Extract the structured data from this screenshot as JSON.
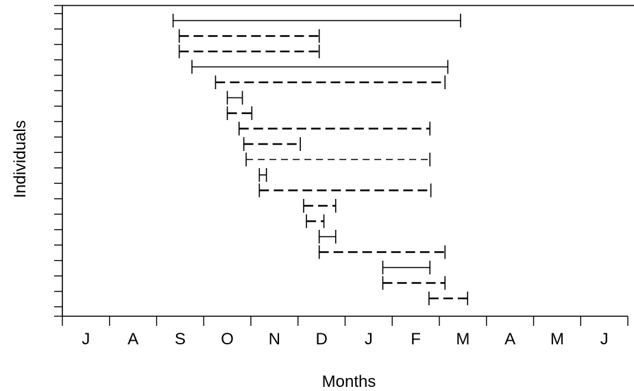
{
  "chart_data": {
    "type": "range",
    "xlabel": "Months",
    "ylabel": "Individuals",
    "x_tick_labels": [
      "J",
      "A",
      "S",
      "O",
      "N",
      "D",
      "J",
      "F",
      "M",
      "A",
      "M",
      "J"
    ],
    "xlim": [
      0,
      12
    ],
    "y_count": 19,
    "grid": false,
    "legend": "none",
    "line_styles": {
      "solid": "solid",
      "dashed": "long dash",
      "fine-dashed": "short dash"
    },
    "intervals": [
      {
        "individual": 1,
        "start": 2.35,
        "end": 8.45,
        "style": "solid"
      },
      {
        "individual": 2,
        "start": 2.48,
        "end": 5.45,
        "style": "dashed"
      },
      {
        "individual": 3,
        "start": 2.48,
        "end": 5.45,
        "style": "dashed"
      },
      {
        "individual": 4,
        "start": 2.75,
        "end": 8.18,
        "style": "solid"
      },
      {
        "individual": 5,
        "start": 3.25,
        "end": 8.12,
        "style": "dashed"
      },
      {
        "individual": 6,
        "start": 3.5,
        "end": 3.82,
        "style": "solid"
      },
      {
        "individual": 7,
        "start": 3.5,
        "end": 4.02,
        "style": "dashed"
      },
      {
        "individual": 8,
        "start": 3.75,
        "end": 7.8,
        "style": "dashed"
      },
      {
        "individual": 9,
        "start": 3.85,
        "end": 5.05,
        "style": "dashed"
      },
      {
        "individual": 10,
        "start": 3.9,
        "end": 7.8,
        "style": "fine-dashed"
      },
      {
        "individual": 11,
        "start": 4.18,
        "end": 4.33,
        "style": "solid"
      },
      {
        "individual": 12,
        "start": 4.18,
        "end": 7.82,
        "style": "dashed"
      },
      {
        "individual": 13,
        "start": 5.12,
        "end": 5.8,
        "style": "dashed"
      },
      {
        "individual": 14,
        "start": 5.18,
        "end": 5.55,
        "style": "dashed"
      },
      {
        "individual": 15,
        "start": 5.45,
        "end": 5.8,
        "style": "solid"
      },
      {
        "individual": 16,
        "start": 5.45,
        "end": 8.12,
        "style": "dashed"
      },
      {
        "individual": 17,
        "start": 6.8,
        "end": 7.8,
        "style": "solid"
      },
      {
        "individual": 18,
        "start": 6.8,
        "end": 8.12,
        "style": "dashed"
      },
      {
        "individual": 19,
        "start": 7.78,
        "end": 8.6,
        "style": "dashed"
      }
    ]
  }
}
